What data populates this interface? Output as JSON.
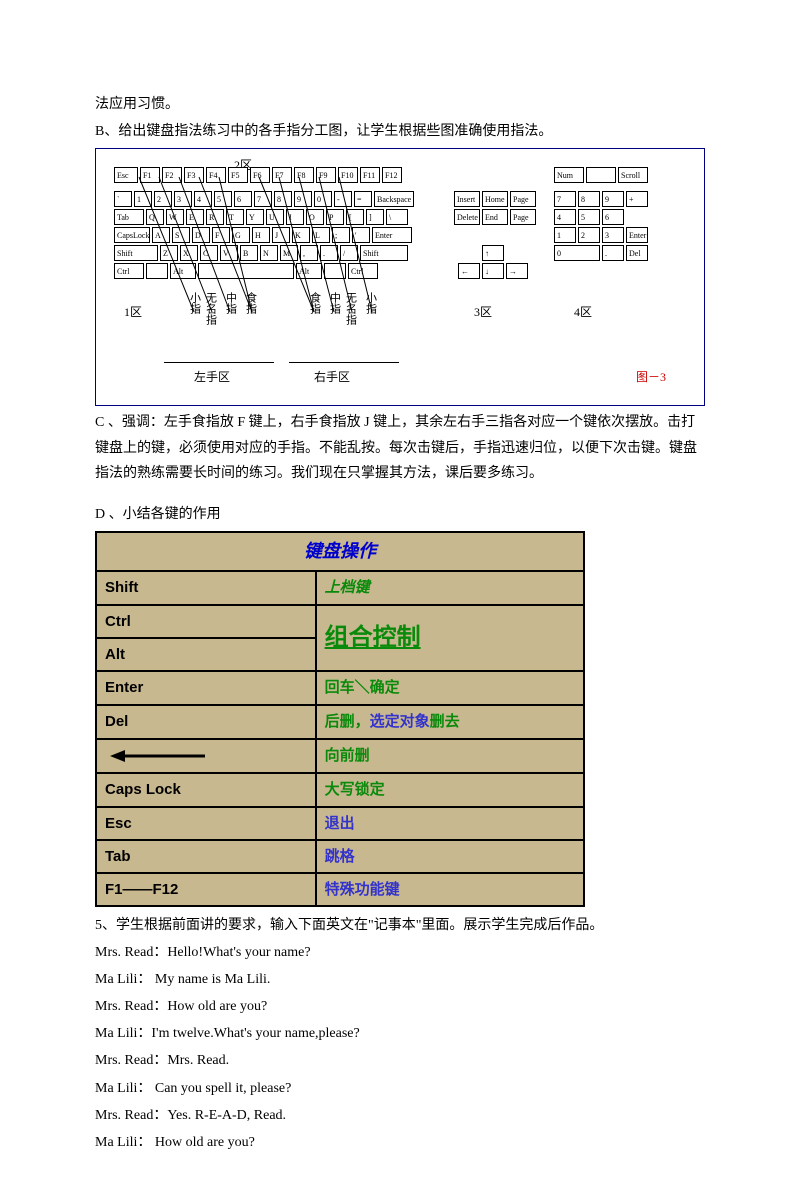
{
  "intro": {
    "line1": "法应用习惯。",
    "line2": "B、给出键盘指法练习中的各手指分工图，让学生根据些图准确使用指法。"
  },
  "keyboard": {
    "sections": {
      "s1": "1区",
      "s2": "2区",
      "s3": "3区",
      "s4": "4区"
    },
    "region_left": "左手区",
    "region_right": "右手区",
    "figure_ref": "图－3",
    "fingers_left": [
      "小指",
      "无名指",
      "中指",
      "食指"
    ],
    "fingers_right": [
      "食指",
      "中指",
      "无名指",
      "小指"
    ],
    "row_fn": [
      "Esc",
      "F1",
      "F2",
      "F3",
      "F4",
      "F5",
      "F6",
      "F7",
      "F8",
      "F9",
      "F10",
      "F11",
      "F12"
    ],
    "row_num": [
      "`",
      "1",
      "2",
      "3",
      "4",
      "5",
      "6",
      "7",
      "8",
      "9",
      "0",
      "-",
      "=",
      "Backspace"
    ],
    "row_q": [
      "Tab",
      "Q",
      "W",
      "E",
      "R",
      "T",
      "Y",
      "U",
      "I",
      "O",
      "P",
      "[",
      "]",
      "\\"
    ],
    "row_a": [
      "CapsLock",
      "A",
      "S",
      "D",
      "F",
      "G",
      "H",
      "J",
      "K",
      "L",
      ";",
      "'",
      "Enter"
    ],
    "row_z": [
      "Shift",
      "Z",
      "X",
      "C",
      "V",
      "B",
      "N",
      "M",
      ",",
      ".",
      "/",
      "Shift"
    ],
    "row_ctrl": [
      "Ctrl",
      "",
      "Alt",
      "",
      "Alt",
      "",
      "Ctrl"
    ],
    "nav_top": [
      "Insert",
      "Home",
      "Page Up"
    ],
    "nav_bot": [
      "Delete",
      "End",
      "Page Down"
    ],
    "lights": [
      "Num Lock",
      "",
      "Scroll"
    ],
    "numpad": [
      [
        "7",
        "8",
        "9",
        "+"
      ],
      [
        "4",
        "5",
        "6"
      ],
      [
        "1",
        "2",
        "3",
        "Enter"
      ],
      [
        "0",
        ".",
        "Del"
      ]
    ],
    "arrows": {
      "up": "↑",
      "left": "←",
      "down": "↓",
      "right": "→"
    }
  },
  "section_c": "C 、强调：左手食指放 F 键上，右手食指放 J 键上，其余左右手三指各对应一个键依次摆放。击打键盘上的键，必须使用对应的手指。不能乱按。每次击键后，手指迅速归位，以便下次击键。键盘指法的熟练需要长时间的练习。我们现在只掌握其方法，课后要多练习。",
  "section_d_title": "D 、小结各键的作用",
  "op_table": {
    "caption": "键盘操作",
    "rows": [
      {
        "key": "Shift",
        "desc": "上档键",
        "desc_class": "green"
      },
      {
        "key": "Ctrl",
        "desc": "",
        "merged": true
      },
      {
        "key": "Alt",
        "desc": "组合控制",
        "desc_class": "big-green",
        "rowspan": 2
      },
      {
        "key": "Enter",
        "desc": "回车＼确定",
        "desc_class": "green"
      },
      {
        "key": "Del",
        "desc_prefix": "后删，",
        "desc_mid": "选定对象",
        "desc_suffix": "删去"
      },
      {
        "key": "arrow",
        "desc": "向前删",
        "desc_class": "green"
      },
      {
        "key": "Caps Lock",
        "desc": "大写锁定",
        "desc_class": "green"
      },
      {
        "key": "Esc",
        "desc": "退出",
        "desc_class": "purple"
      },
      {
        "key": "Tab",
        "desc": "跳格",
        "desc_class": "purple"
      },
      {
        "key": "F1——F12",
        "desc": "特殊功能键",
        "desc_class": "purple"
      }
    ]
  },
  "section_5": "5、学生根据前面讲的要求，输入下面英文在\"记事本\"里面。展示学生完成后作品。",
  "dialogue": [
    "Mrs. Read：Hello!What's your name?",
    "Ma Lili：  My name is Ma Lili.",
    "Mrs. Read：How old are you?",
    "Ma Lili：I'm twelve.What's your name,please?",
    "Mrs. Read：Mrs. Read.",
    "Ma Lili：  Can you spell it, please?",
    "Mrs. Read：Yes. R-E-A-D, Read.",
    "Ma Lili：  How old are you?"
  ]
}
